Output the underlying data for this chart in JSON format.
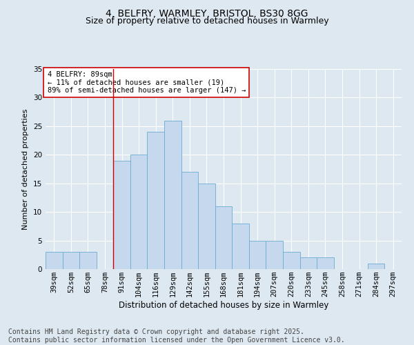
{
  "title1": "4, BELFRY, WARMLEY, BRISTOL, BS30 8GG",
  "title2": "Size of property relative to detached houses in Warmley",
  "xlabel": "Distribution of detached houses by size in Warmley",
  "ylabel": "Number of detached properties",
  "categories": [
    "39sqm",
    "52sqm",
    "65sqm",
    "78sqm",
    "91sqm",
    "104sqm",
    "116sqm",
    "129sqm",
    "142sqm",
    "155sqm",
    "168sqm",
    "181sqm",
    "194sqm",
    "207sqm",
    "220sqm",
    "233sqm",
    "245sqm",
    "258sqm",
    "271sqm",
    "284sqm",
    "297sqm"
  ],
  "values": [
    3,
    3,
    3,
    0,
    19,
    20,
    24,
    26,
    17,
    15,
    11,
    8,
    5,
    5,
    3,
    2,
    2,
    0,
    0,
    1,
    0
  ],
  "bar_color": "#c5d8ee",
  "bar_edge_color": "#6aabd2",
  "bg_color": "#dde8f0",
  "grid_color": "#ffffff",
  "vline_color": "#cc0000",
  "vline_index": 4,
  "annotation_text": "4 BELFRY: 89sqm\n← 11% of detached houses are smaller (19)\n89% of semi-detached houses are larger (147) →",
  "annotation_box_color": "#ffffff",
  "annotation_box_edge": "#cc0000",
  "footnote": "Contains HM Land Registry data © Crown copyright and database right 2025.\nContains public sector information licensed under the Open Government Licence v3.0.",
  "ylim": [
    0,
    35
  ],
  "yticks": [
    0,
    5,
    10,
    15,
    20,
    25,
    30,
    35
  ],
  "title_fontsize": 10,
  "subtitle_fontsize": 9,
  "footnote_fontsize": 7,
  "annotation_fontsize": 7.5,
  "tick_fontsize": 7.5,
  "ylabel_fontsize": 8,
  "xlabel_fontsize": 8.5
}
